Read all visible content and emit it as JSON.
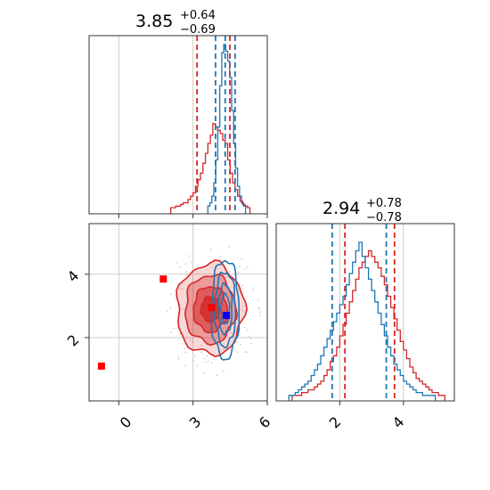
{
  "chart_data": [
    {
      "type": "histogram",
      "panel": "top-left",
      "title": {
        "value": "3.85",
        "plus": "+0.64",
        "minus": "−0.69"
      },
      "xlim": [
        -1.2,
        6.0
      ],
      "grid": true,
      "series": [
        {
          "color": "#d62728",
          "quantiles": [
            3.16,
            4.49
          ],
          "bins": {
            "start": 2.1,
            "width": 0.1,
            "counts": [
              1,
              1,
              2,
              2,
              3,
              4,
              4,
              6,
              8,
              10,
              14,
              18,
              22,
              28,
              34,
              40,
              45,
              52,
              50,
              48,
              46,
              42,
              40,
              30,
              22,
              16,
              12,
              8,
              5,
              3,
              2,
              1
            ]
          }
        },
        {
          "color": "#1f77b4",
          "quantiles": [
            3.91,
            4.7
          ],
          "bins": {
            "start": 3.6,
            "width": 0.08,
            "counts": [
              2,
              4,
              8,
              16,
              30,
              50,
              75,
              95,
              100,
              96,
              90,
              80,
              60,
              40,
              25,
              14,
              8,
              4,
              2
            ]
          }
        }
      ],
      "median_line": {
        "color": "#1f77b4",
        "x": 4.3
      }
    },
    {
      "type": "contour",
      "panel": "bottom-left",
      "xticks": [
        "0",
        "3",
        "6"
      ],
      "yticks": [
        "4",
        "2"
      ],
      "xlim": [
        -1.2,
        6.0
      ],
      "ylim": [
        0.0,
        5.6
      ],
      "grid": true,
      "series": [
        {
          "color": "#d62728",
          "center": [
            3.7,
            2.9
          ],
          "sigma": [
            0.68,
            0.72
          ]
        },
        {
          "color": "#1f77b4",
          "center": [
            4.3,
            2.9
          ],
          "sigma": [
            0.28,
            0.78
          ]
        }
      ],
      "markers": [
        {
          "color": "#ff0000",
          "x": -0.7,
          "y": 1.1
        },
        {
          "color": "#ff0000",
          "x": 1.8,
          "y": 3.85
        },
        {
          "color": "#ff0000",
          "x": 3.75,
          "y": 2.95
        },
        {
          "color": "#0000ff",
          "x": 4.35,
          "y": 2.7
        }
      ]
    },
    {
      "type": "histogram",
      "panel": "bottom-right",
      "title": {
        "value": "2.94",
        "plus": "+0.78",
        "minus": "−0.78"
      },
      "xticks": [
        "2",
        "4"
      ],
      "xlim": [
        0.0,
        5.6
      ],
      "grid": true,
      "series": [
        {
          "color": "#d62728",
          "quantiles": [
            2.16,
            3.72
          ],
          "bins": {
            "start": 0.5,
            "width": 0.1,
            "counts": [
              1,
              1,
              1,
              2,
              2,
              3,
              3,
              4,
              5,
              6,
              8,
              10,
              13,
              15,
              18,
              22,
              26,
              30,
              34,
              38,
              42,
              46,
              48,
              50,
              52,
              50,
              48,
              46,
              43,
              40,
              36,
              32,
              28,
              24,
              20,
              17,
              14,
              11,
              9,
              7,
              6,
              5,
              4,
              3,
              2,
              2,
              1,
              1
            ]
          }
        },
        {
          "color": "#1f77b4",
          "quantiles": [
            1.76,
            3.46
          ],
          "bins": {
            "start": 0.4,
            "width": 0.1,
            "counts": [
              1,
              1,
              2,
              3,
              4,
              5,
              6,
              8,
              10,
              12,
              15,
              18,
              21,
              24,
              27,
              30,
              33,
              36,
              40,
              44,
              48,
              52,
              55,
              50,
              46,
              42,
              38,
              34,
              30,
              26,
              22,
              18,
              15,
              12,
              10,
              8,
              6,
              5,
              4,
              3,
              2,
              2,
              1,
              1,
              1,
              1
            ]
          }
        }
      ]
    }
  ]
}
